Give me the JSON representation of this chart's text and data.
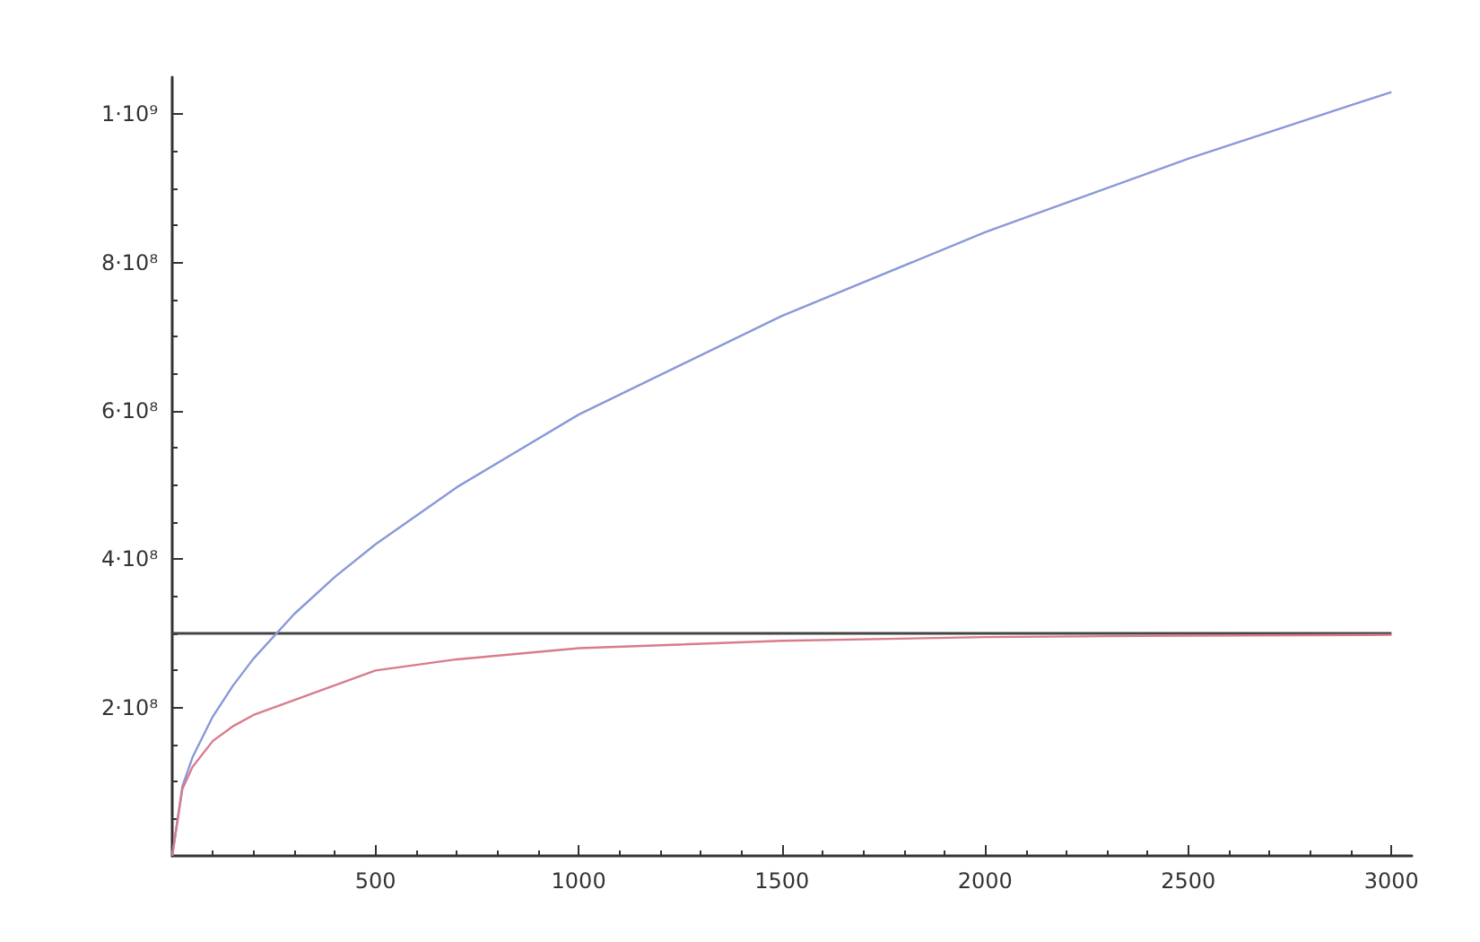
{
  "chart_data": {
    "type": "line",
    "x": [
      0,
      25,
      50,
      100,
      150,
      200,
      300,
      400,
      500,
      700,
      1000,
      1500,
      2000,
      2500,
      3000
    ],
    "series": [
      {
        "color": "#8a98d8",
        "values": [
          0,
          94000000,
          133000000,
          188000000,
          230000000,
          266000000,
          326000000,
          376000000,
          420000000,
          497000000,
          595000000,
          728000000,
          841000000,
          940000000,
          1030000000
        ]
      },
      {
        "color": "#d87c8c",
        "values": [
          0,
          90000000,
          120000000,
          155000000,
          175000000,
          190000000,
          210000000,
          230000000,
          250000000,
          265000000,
          280000000,
          290000000,
          295000000,
          297000000,
          298000000
        ]
      }
    ],
    "xlim": [
      0,
      3050
    ],
    "xticks": [
      500,
      1000,
      1500,
      2000,
      2500,
      3000
    ],
    "ylim": [
      0,
      1050000000
    ],
    "yticks": [
      {
        "value": 200000000,
        "label": "2·10⁸"
      },
      {
        "value": 400000000,
        "label": "4·10⁸"
      },
      {
        "value": 600000000,
        "label": "6·10⁸"
      },
      {
        "value": 800000000,
        "label": "8·10⁸"
      },
      {
        "value": 1000000000,
        "label": "1·10⁹"
      }
    ],
    "ref_lines": [
      {
        "axis": "y",
        "value": 300000000,
        "color": "#444444"
      }
    ],
    "grid": false,
    "marker": "none",
    "line_style": "solid"
  }
}
